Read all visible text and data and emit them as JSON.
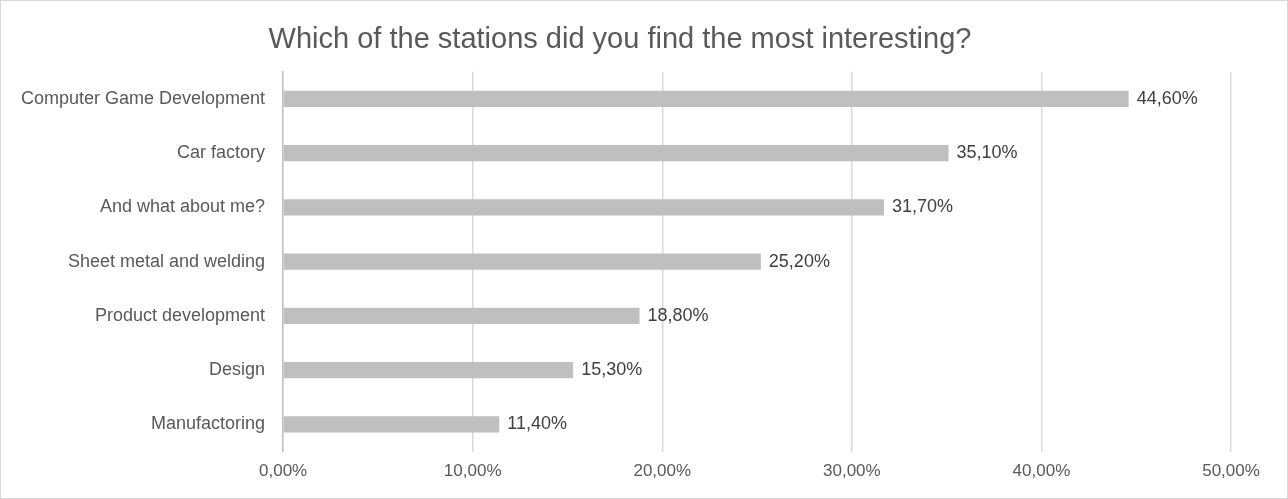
{
  "chart_data": {
    "type": "bar",
    "orientation": "horizontal",
    "title": "Which of the stations did you find the most interesting?",
    "categories": [
      "Computer Game Development",
      "Car factory",
      "And what about me?",
      "Sheet metal and welding",
      "Product development",
      "Design",
      "Manufactoring"
    ],
    "values": [
      44.6,
      35.1,
      31.7,
      25.2,
      18.8,
      15.3,
      11.4
    ],
    "value_labels": [
      "44,60%",
      "35,10%",
      "31,70%",
      "25,20%",
      "18,80%",
      "15,30%",
      "11,40%"
    ],
    "color": "#bfbfbf",
    "xlim": [
      0,
      50
    ],
    "xticks": [
      {
        "value": 0,
        "label": "0,00%"
      },
      {
        "value": 10,
        "label": "10,00%"
      },
      {
        "value": 20,
        "label": "20,00%"
      },
      {
        "value": 30,
        "label": "30,00%"
      },
      {
        "value": 40,
        "label": "40,00%"
      },
      {
        "value": 50,
        "label": "50,00%"
      }
    ],
    "grid": "x",
    "legend": false
  }
}
